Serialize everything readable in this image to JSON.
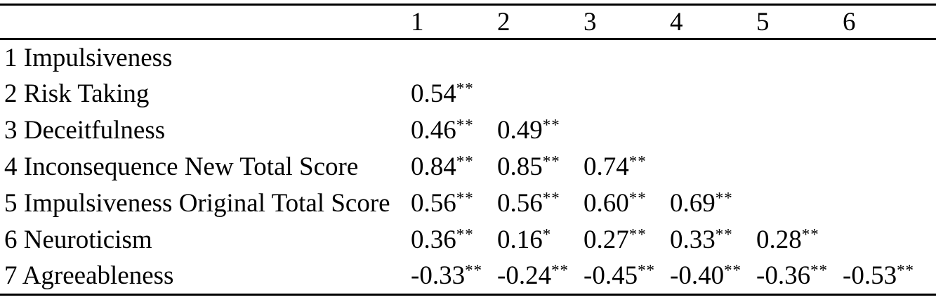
{
  "table": {
    "columns": [
      "1",
      "2",
      "3",
      "4",
      "5",
      "6"
    ],
    "rows": [
      {
        "label": "1 Impulsiveness",
        "cells": []
      },
      {
        "label": "2 Risk Taking",
        "cells": [
          {
            "v": "0.54",
            "sig": "**"
          }
        ]
      },
      {
        "label": "3 Deceitfulness",
        "cells": [
          {
            "v": "0.46",
            "sig": "**"
          },
          {
            "v": "0.49",
            "sig": "**"
          }
        ]
      },
      {
        "label": "4 Inconsequence New Total Score",
        "cells": [
          {
            "v": "0.84",
            "sig": "**"
          },
          {
            "v": "0.85",
            "sig": "**"
          },
          {
            "v": "0.74",
            "sig": "**"
          }
        ]
      },
      {
        "label": "5 Impulsiveness Original Total Score",
        "cells": [
          {
            "v": "0.56",
            "sig": "**"
          },
          {
            "v": "0.56",
            "sig": "**"
          },
          {
            "v": "0.60",
            "sig": "**"
          },
          {
            "v": "0.69",
            "sig": "**"
          }
        ]
      },
      {
        "label": "6 Neuroticism",
        "cells": [
          {
            "v": "0.36",
            "sig": "**"
          },
          {
            "v": "0.16",
            "sig": "*"
          },
          {
            "v": "0.27",
            "sig": "**"
          },
          {
            "v": "0.33",
            "sig": "**"
          },
          {
            "v": "0.28",
            "sig": "**"
          }
        ]
      },
      {
        "label": "7 Agreeableness",
        "cells": [
          {
            "v": "-0.33",
            "sig": "**"
          },
          {
            "v": "-0.24",
            "sig": "**"
          },
          {
            "v": "-0.45",
            "sig": "**"
          },
          {
            "v": "-0.40",
            "sig": "**"
          },
          {
            "v": "-0.36",
            "sig": "**"
          },
          {
            "v": "-0.53",
            "sig": "**"
          }
        ]
      }
    ]
  },
  "colors": {
    "text": "#000000",
    "rule": "#000000",
    "background": "#ffffff"
  }
}
